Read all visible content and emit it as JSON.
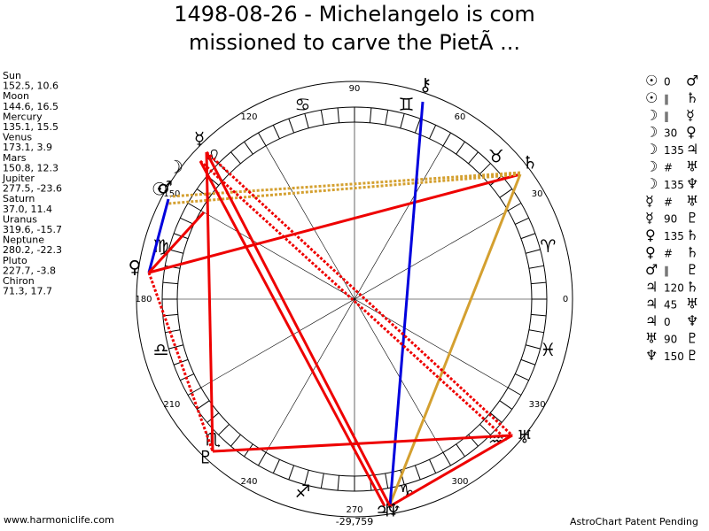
{
  "header": {
    "title_lines": [
      "1498-08-26 - Michelangelo is com",
      "missioned to carve the PietÃ ..."
    ]
  },
  "planets": [
    {
      "name": "Sun",
      "position": "152.5, 10.6"
    },
    {
      "name": "Moon",
      "position": "144.6, 16.5"
    },
    {
      "name": "Mercury",
      "position": "135.1, 15.5"
    },
    {
      "name": "Venus",
      "position": "173.1, 3.9"
    },
    {
      "name": "Mars",
      "position": "150.8, 12.3"
    },
    {
      "name": "Jupiter",
      "position": "277.5, -23.6"
    },
    {
      "name": "Saturn",
      "position": "37.0, 11.4"
    },
    {
      "name": "Uranus",
      "position": "319.6, -15.7"
    },
    {
      "name": "Neptune",
      "position": "280.2, -22.3"
    },
    {
      "name": "Pluto",
      "position": "227.7, -3.8"
    },
    {
      "name": "Chiron",
      "position": "71.3, 17.7"
    }
  ],
  "aspects": [
    [
      "☉",
      "0",
      "♂"
    ],
    [
      "☉",
      "∥",
      "♄"
    ],
    [
      "☽",
      "∥",
      "☿"
    ],
    [
      "☽",
      "30",
      "♀"
    ],
    [
      "☽",
      "135",
      "♃"
    ],
    [
      "☽",
      "#",
      "♅"
    ],
    [
      "☽",
      "135",
      "♆"
    ],
    [
      "☿",
      "#",
      "♅"
    ],
    [
      "☿",
      "90",
      "♇"
    ],
    [
      "♀",
      "135",
      "♄"
    ],
    [
      "♀",
      "#",
      "♄"
    ],
    [
      "♂",
      "∥",
      "♇"
    ],
    [
      "♃",
      "120",
      "♄"
    ],
    [
      "♃",
      "45",
      "♅"
    ],
    [
      "♃",
      "0",
      "♆"
    ],
    [
      "♅",
      "90",
      "♇"
    ],
    [
      "♆",
      "150",
      "♇"
    ]
  ],
  "wheel": {
    "degree_labels": [
      "0",
      "30",
      "60",
      "90",
      "120",
      "150",
      "180",
      "210",
      "240",
      "270",
      "300",
      "330"
    ],
    "signs": [
      "♈",
      "♉",
      "♊",
      "♋",
      "♌",
      "♍",
      "♎",
      "♏",
      "♐",
      "♑",
      "♒",
      "♓"
    ],
    "planet_glyphs": [
      "☉",
      "☽",
      "☿",
      "♀",
      "♂",
      "♃",
      "♄",
      "♅",
      "♆",
      "♇",
      "⚷"
    ]
  },
  "footer": {
    "left": "www.harmoniclife.com",
    "center": "-29,759",
    "right": "AstroChart Patent Pending"
  }
}
